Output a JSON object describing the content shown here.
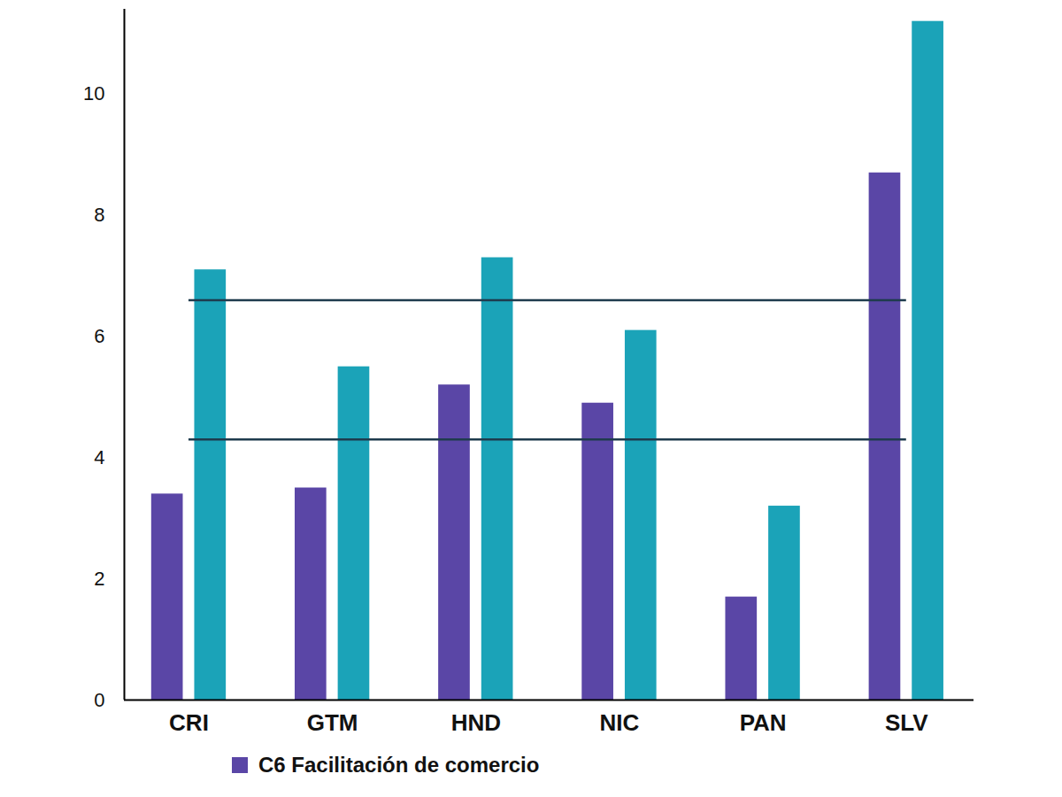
{
  "chart_data": {
    "type": "bar",
    "categories": [
      "CRI",
      "GTM",
      "HND",
      "NIC",
      "PAN",
      "SLV"
    ],
    "series": [
      {
        "name": "C6 Facilitación de comercio",
        "color": "#5a46a6",
        "values": [
          3.4,
          3.5,
          5.2,
          4.9,
          1.7,
          8.7
        ]
      },
      {
        "color": "#1ba3b8",
        "values": [
          7.1,
          5.5,
          7.3,
          6.1,
          3.2,
          11.2
        ]
      }
    ],
    "reference_lines": [
      4.3,
      6.6
    ],
    "ylim": [
      0,
      11.4
    ],
    "yticks": [
      0,
      2,
      4,
      6,
      8,
      10
    ],
    "grid": false,
    "legend": "bottom"
  }
}
